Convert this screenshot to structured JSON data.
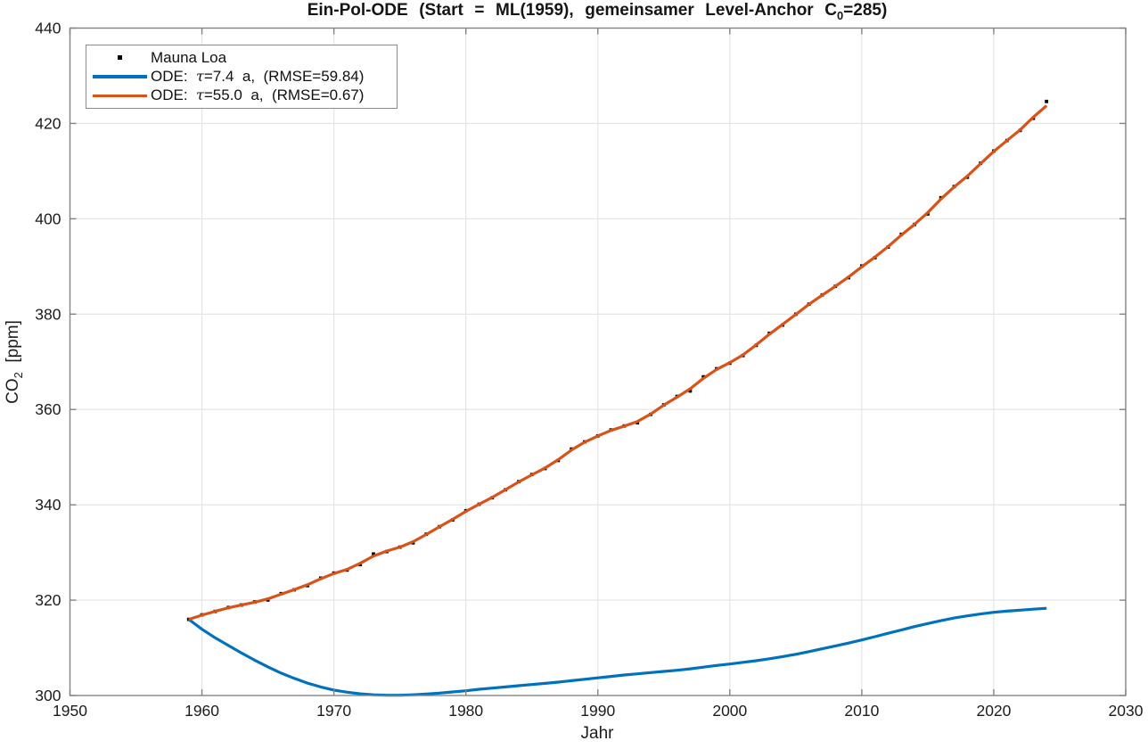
{
  "title": {
    "pre": "Ein-Pol-ODE  (Start  =  ML(1959),  gemeinsamer  Level-Anchor  C",
    "sub": "0",
    "post": "=285)"
  },
  "xlabel": "Jahr",
  "ylabel": {
    "pre": "CO",
    "sub": "2",
    "post": "  [ppm]"
  },
  "legend": {
    "items": [
      {
        "label": "Mauna Loa",
        "marker": "black-square"
      },
      {
        "prefix": "ODE:  ",
        "tau": "τ",
        "rest": "=7.4  a,  (RMSE=59.84)",
        "color": "#0072BD"
      },
      {
        "prefix": "ODE:  ",
        "tau": "τ",
        "rest": "=55.0  a,  (RMSE=0.67)",
        "color": "#D95319"
      }
    ]
  },
  "colors": {
    "blue": "#0072BD",
    "orange": "#D95319",
    "marker": "#000000",
    "grid": "#E3E3E3",
    "axis": "#848484",
    "text": "#1C1C1C"
  },
  "chart_data": {
    "type": "line",
    "title": "Ein-Pol-ODE (Start = ML(1959), gemeinsamer Level-Anchor C0=285)",
    "xlabel": "Jahr",
    "ylabel": "CO2 [ppm]",
    "xlim": [
      1950,
      2030
    ],
    "ylim": [
      300,
      440
    ],
    "xticks": [
      1950,
      1960,
      1970,
      1980,
      1990,
      2000,
      2010,
      2020,
      2030
    ],
    "yticks": [
      300,
      320,
      340,
      360,
      380,
      400,
      420,
      440
    ],
    "grid": true,
    "legend_position": "top-left",
    "x_start_year": 1959,
    "x_step": 1,
    "series": [
      {
        "name": "Mauna Loa",
        "style": "scatter-square",
        "color": "#000000",
        "values": [
          315.97,
          316.91,
          317.64,
          318.45,
          318.99,
          319.62,
          320.04,
          321.37,
          322.18,
          323.05,
          324.62,
          325.68,
          326.32,
          327.46,
          329.68,
          330.19,
          331.12,
          332.03,
          333.84,
          335.41,
          336.84,
          338.76,
          340.12,
          341.48,
          343.15,
          344.85,
          346.35,
          347.61,
          349.31,
          351.69,
          353.2,
          354.45,
          355.7,
          356.54,
          357.21,
          358.96,
          360.97,
          362.74,
          363.88,
          366.84,
          368.54,
          369.71,
          371.32,
          373.45,
          375.98,
          377.7,
          379.98,
          382.09,
          384.02,
          385.83,
          387.64,
          390.1,
          391.85,
          394.06,
          396.74,
          398.81,
          401.01,
          404.41,
          406.76,
          408.72,
          411.65,
          414.21,
          416.41,
          418.53,
          421.08,
          424.61
        ]
      },
      {
        "name": "ODE: τ=7.4 a, (RMSE=59.84)",
        "style": "line",
        "color": "#0072BD",
        "values": [
          315.97,
          313.9,
          312.1,
          310.5,
          308.9,
          307.4,
          306.0,
          304.7,
          303.6,
          302.6,
          301.8,
          301.15,
          300.7,
          300.35,
          300.15,
          300.05,
          300.05,
          300.15,
          300.3,
          300.5,
          300.75,
          301.0,
          301.3,
          301.55,
          301.8,
          302.05,
          302.3,
          302.55,
          302.8,
          303.1,
          303.4,
          303.7,
          304.0,
          304.3,
          304.55,
          304.8,
          305.05,
          305.3,
          305.6,
          305.95,
          306.3,
          306.6,
          306.95,
          307.3,
          307.7,
          308.15,
          308.65,
          309.2,
          309.8,
          310.4,
          311.0,
          311.65,
          312.35,
          313.05,
          313.75,
          314.45,
          315.1,
          315.7,
          316.25,
          316.7,
          317.1,
          317.45,
          317.7,
          317.9,
          318.1,
          318.3
        ]
      },
      {
        "name": "ODE: τ=55.0 a, (RMSE=0.67)",
        "style": "line",
        "color": "#D95319",
        "values": [
          315.97,
          316.86,
          317.66,
          318.38,
          319.01,
          319.57,
          320.27,
          321.24,
          322.2,
          323.23,
          324.49,
          325.58,
          326.45,
          327.73,
          329.25,
          330.3,
          331.12,
          332.26,
          333.78,
          335.38,
          336.96,
          338.62,
          340.12,
          341.56,
          343.16,
          344.8,
          346.29,
          347.72,
          349.48,
          351.47,
          353.14,
          354.45,
          355.6,
          356.5,
          357.48,
          359.03,
          360.91,
          362.58,
          364.34,
          366.53,
          368.41,
          369.82,
          371.45,
          373.55,
          375.78,
          377.84,
          379.94,
          382.05,
          383.99,
          385.83,
          387.8,
          389.92,
          391.97,
          394.18,
          396.59,
          398.84,
          401.31,
          404.15,
          406.66,
          408.96,
          411.56,
          414.12,
          416.39,
          418.64,
          421.33,
          423.73
        ]
      }
    ]
  }
}
